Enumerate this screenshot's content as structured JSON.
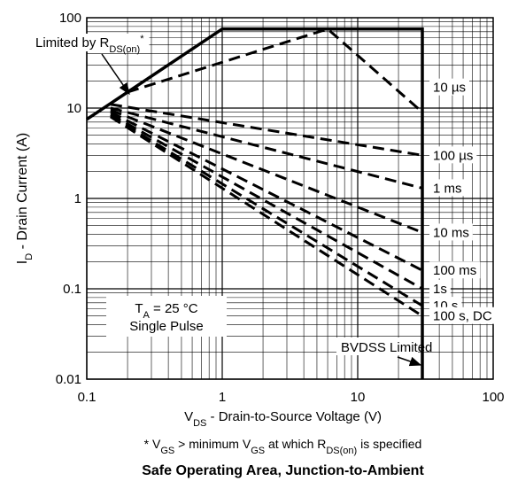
{
  "chart_data": {
    "type": "line",
    "title": "Safe Operating Area, Junction-to-Ambient",
    "xscale": "log",
    "yscale": "log",
    "xlim": [
      0.1,
      100
    ],
    "ylim": [
      0.01,
      100
    ],
    "grid": true,
    "xlabel": {
      "main": "V",
      "sub": "DS",
      "rest": " - Drain-to-Source Voltage (V)"
    },
    "ylabel": {
      "main": "I",
      "sub": "D",
      "rest": " - Drain Current (A)"
    },
    "x_ticks": [
      {
        "value": 0.1,
        "label": "0.1"
      },
      {
        "value": 1,
        "label": "1"
      },
      {
        "value": 10,
        "label": "10"
      },
      {
        "value": 100,
        "label": "100"
      }
    ],
    "y_ticks": [
      {
        "value": 0.01,
        "label": "0.01"
      },
      {
        "value": 0.1,
        "label": "0.1"
      },
      {
        "value": 1,
        "label": "1"
      },
      {
        "value": 10,
        "label": "10"
      },
      {
        "value": 100,
        "label": "100"
      }
    ],
    "boundary": {
      "points": [
        [
          0.1,
          7.5
        ],
        [
          1,
          75
        ],
        [
          30,
          75
        ],
        [
          30,
          0.01
        ]
      ],
      "style": "solid"
    },
    "curves": [
      {
        "label": "10 µs",
        "points": [
          [
            0.2,
            15
          ],
          [
            6,
            75
          ],
          [
            30,
            9
          ]
        ]
      },
      {
        "label": "100 µs",
        "points": [
          [
            0.15,
            11
          ],
          [
            30,
            3
          ]
        ]
      },
      {
        "label": "1 ms",
        "points": [
          [
            0.15,
            10
          ],
          [
            30,
            1.3
          ]
        ]
      },
      {
        "label": "10 ms",
        "points": [
          [
            0.15,
            9.5
          ],
          [
            30,
            0.42
          ]
        ]
      },
      {
        "label": "100 ms",
        "points": [
          [
            0.15,
            9
          ],
          [
            30,
            0.16
          ]
        ]
      },
      {
        "label": "1s",
        "points": [
          [
            0.15,
            8.5
          ],
          [
            30,
            0.1
          ]
        ]
      },
      {
        "label": "10 s",
        "points": [
          [
            0.15,
            8.2
          ],
          [
            30,
            0.065
          ]
        ]
      },
      {
        "label": "100 s, DC",
        "points": [
          [
            0.15,
            8
          ],
          [
            30,
            0.05
          ]
        ]
      }
    ],
    "annotations": {
      "limited_by": {
        "text": "Limited by R",
        "sub": "DS(on)",
        "sup": "*"
      },
      "conditions_line1": {
        "main": "T",
        "sub": "A",
        "rest": " = 25 °C"
      },
      "conditions_line2": "Single Pulse",
      "bvdss": "BVDSS Limited"
    },
    "footnote": {
      "parts": [
        {
          "t": "* V",
          "s": false
        },
        {
          "t": "GS",
          "s": true
        },
        {
          "t": " > minimum V",
          "s": false
        },
        {
          "t": "GS",
          "s": true
        },
        {
          "t": " at which R",
          "s": false
        },
        {
          "t": "DS(on)",
          "s": true
        },
        {
          "t": " is specified",
          "s": false
        }
      ]
    },
    "colors": {
      "line": "#000000",
      "grid": "#000000",
      "background": "#ffffff"
    }
  }
}
